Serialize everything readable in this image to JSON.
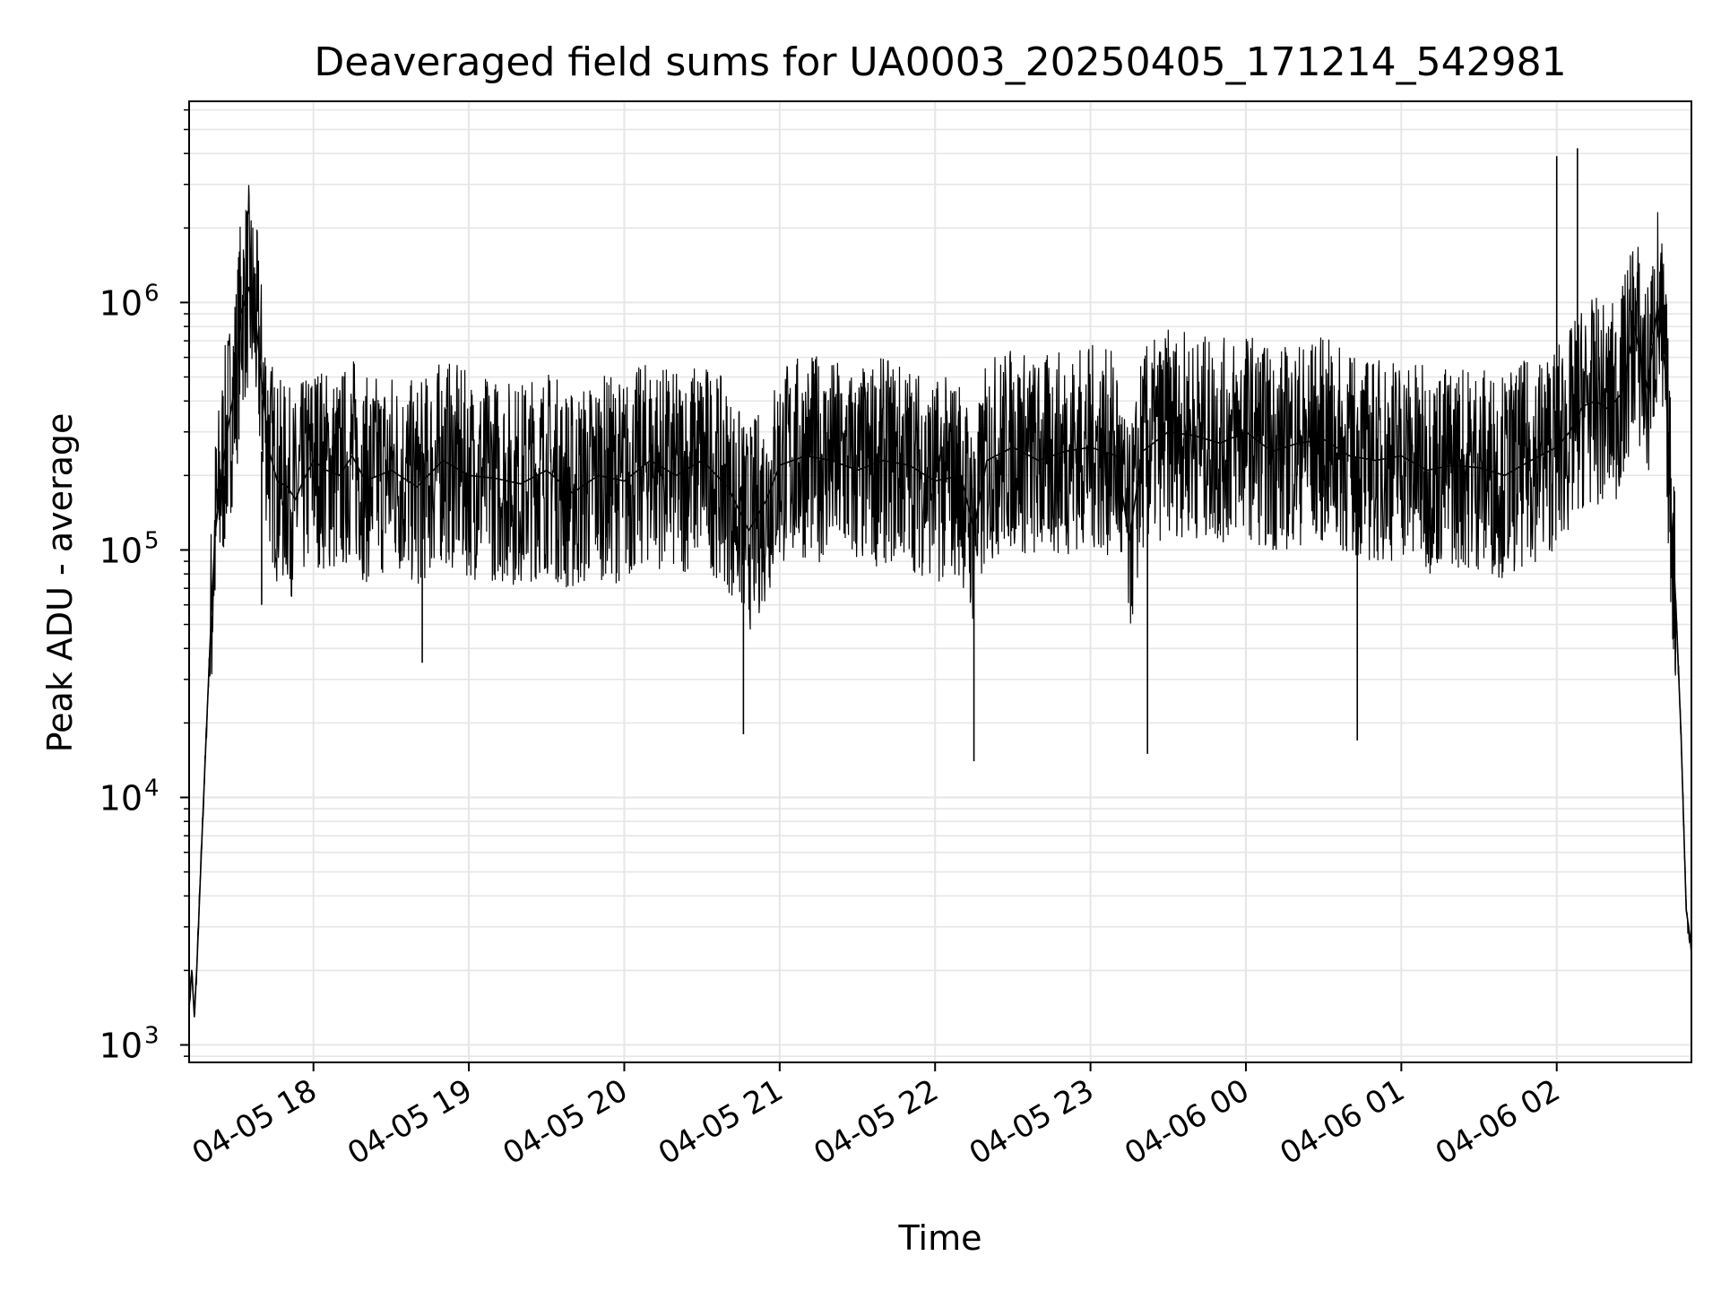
{
  "chart_data": {
    "type": "line",
    "title": "Deaveraged field sums for UA0003_20250405_171214_542981",
    "xlabel": "Time",
    "ylabel": "Peak ADU - average",
    "yscale": "log",
    "ylim": [
      850,
      6500000
    ],
    "xlim": [
      "2025-04-05 17:12",
      "2025-04-06 02:52"
    ],
    "grid": true,
    "line_color": "#000000",
    "grid_color": "#e6e6e6",
    "x_ticks": [
      {
        "label": "04-05 18",
        "t": "2025-04-05 18:00"
      },
      {
        "label": "04-05 19",
        "t": "2025-04-05 19:00"
      },
      {
        "label": "04-05 20",
        "t": "2025-04-05 20:00"
      },
      {
        "label": "04-05 21",
        "t": "2025-04-05 21:00"
      },
      {
        "label": "04-05 22",
        "t": "2025-04-05 22:00"
      },
      {
        "label": "04-05 23",
        "t": "2025-04-05 23:00"
      },
      {
        "label": "04-06 00",
        "t": "2025-04-06 00:00"
      },
      {
        "label": "04-06 01",
        "t": "2025-04-06 01:00"
      },
      {
        "label": "04-06 02",
        "t": "2025-04-06 02:00"
      }
    ],
    "y_ticks": [
      {
        "value": 1000,
        "base": "10",
        "exp": "3"
      },
      {
        "value": 10000,
        "base": "10",
        "exp": "4"
      },
      {
        "value": 100000,
        "base": "10",
        "exp": "5"
      },
      {
        "value": 1000000,
        "base": "10",
        "exp": "6"
      }
    ],
    "series": [
      {
        "x": [
          "2025-04-05 17:12",
          "2025-04-05 17:13",
          "2025-04-05 17:14",
          "2025-04-05 17:15",
          "2025-04-05 17:17",
          "2025-04-05 17:20",
          "2025-04-05 17:22",
          "2025-04-05 17:25",
          "2025-04-05 17:27",
          "2025-04-05 17:30",
          "2025-04-05 17:32",
          "2025-04-05 17:35",
          "2025-04-05 17:38",
          "2025-04-05 17:40",
          "2025-04-05 17:43",
          "2025-04-05 17:46",
          "2025-04-05 17:50",
          "2025-04-05 17:53",
          "2025-04-05 17:56",
          "2025-04-05 18:00",
          "2025-04-05 18:05",
          "2025-04-05 18:10",
          "2025-04-05 18:15",
          "2025-04-05 18:20",
          "2025-04-05 18:30",
          "2025-04-05 18:40",
          "2025-04-05 18:50",
          "2025-04-05 19:00",
          "2025-04-05 19:10",
          "2025-04-05 19:20",
          "2025-04-05 19:30",
          "2025-04-05 19:40",
          "2025-04-05 19:50",
          "2025-04-05 20:00",
          "2025-04-05 20:10",
          "2025-04-05 20:20",
          "2025-04-05 20:30",
          "2025-04-05 20:40",
          "2025-04-05 20:48",
          "2025-04-05 20:55",
          "2025-04-05 21:00",
          "2025-04-05 21:10",
          "2025-04-05 21:20",
          "2025-04-05 21:30",
          "2025-04-05 21:40",
          "2025-04-05 21:50",
          "2025-04-05 22:00",
          "2025-04-05 22:10",
          "2025-04-05 22:15",
          "2025-04-05 22:20",
          "2025-04-05 22:30",
          "2025-04-05 22:40",
          "2025-04-05 22:50",
          "2025-04-05 23:00",
          "2025-04-05 23:10",
          "2025-04-05 23:15",
          "2025-04-05 23:20",
          "2025-04-05 23:30",
          "2025-04-05 23:40",
          "2025-04-05 23:50",
          "2025-04-06 00:00",
          "2025-04-06 00:10",
          "2025-04-06 00:20",
          "2025-04-06 00:30",
          "2025-04-06 00:40",
          "2025-04-06 00:50",
          "2025-04-06 01:00",
          "2025-04-06 01:10",
          "2025-04-06 01:20",
          "2025-04-06 01:30",
          "2025-04-06 01:40",
          "2025-04-06 01:50",
          "2025-04-06 02:00",
          "2025-04-06 02:05",
          "2025-04-06 02:10",
          "2025-04-06 02:15",
          "2025-04-06 02:20",
          "2025-04-06 02:25",
          "2025-04-06 02:30",
          "2025-04-06 02:35",
          "2025-04-06 02:39",
          "2025-04-06 02:42",
          "2025-04-06 02:44",
          "2025-04-06 02:46",
          "2025-04-06 02:48",
          "2025-04-06 02:50",
          "2025-04-06 02:52"
        ],
        "y": [
          1400,
          2000,
          1300,
          2100,
          7000,
          40000,
          115000,
          220000,
          310000,
          480000,
          900000,
          1150000,
          800000,
          480000,
          250000,
          190000,
          180000,
          160000,
          190000,
          230000,
          210000,
          200000,
          240000,
          190000,
          210000,
          180000,
          230000,
          200000,
          195000,
          185000,
          210000,
          170000,
          200000,
          190000,
          230000,
          200000,
          230000,
          180000,
          120000,
          160000,
          220000,
          240000,
          230000,
          210000,
          230000,
          220000,
          190000,
          200000,
          120000,
          230000,
          260000,
          230000,
          250000,
          260000,
          240000,
          110000,
          250000,
          300000,
          290000,
          270000,
          300000,
          250000,
          270000,
          280000,
          240000,
          230000,
          240000,
          210000,
          220000,
          215000,
          200000,
          230000,
          260000,
          300000,
          380000,
          400000,
          370000,
          430000,
          800000,
          450000,
          980000,
          520000,
          150000,
          60000,
          18000,
          3500,
          2500
        ]
      },
      {
        "x": [
          "2025-04-05 17:40",
          "2025-04-05 18:42",
          "2025-04-05 20:46",
          "2025-04-05 22:15",
          "2025-04-05 23:22",
          "2025-04-06 00:43",
          "2025-04-06 02:00",
          "2025-04-06 02:08"
        ],
        "y": [
          60000,
          35000,
          18000,
          14000,
          15000,
          17000,
          3900000,
          4200000
        ]
      }
    ]
  }
}
